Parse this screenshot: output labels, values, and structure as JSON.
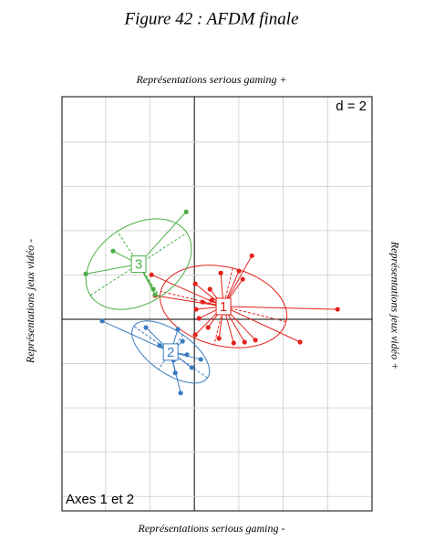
{
  "chart_data": {
    "type": "scatter",
    "title": "Figure 42 : AFDM finale",
    "top_label": "Représentations serious gaming +",
    "bottom_label": "Représentations serious gaming -",
    "left_label": "Représentations jeux vidéo -",
    "right_label": "Représentations jeux vidéo +",
    "annotations": [
      "d = 2",
      "Axes 1 et 2"
    ],
    "xlim": [
      -5.96,
      8
    ],
    "ylim": [
      -8.65,
      10.05
    ],
    "xticks": [
      -4,
      -2,
      0,
      2,
      4,
      6
    ],
    "yticks": [
      -8,
      -6,
      -4,
      -2,
      0,
      2,
      4,
      6,
      8
    ],
    "grid": true,
    "series": [
      {
        "name": "1",
        "color": "#e3211c",
        "x": [
          -1.93,
          -1.77,
          0.04,
          0.7,
          1.19,
          2.01,
          2.59,
          2.18,
          6.45,
          4.76,
          2.75,
          2.26,
          1.77,
          1.11,
          0.04,
          0.62,
          0.08,
          0.37,
          0.78,
          0.21
        ],
        "y": [
          2.01,
          1.07,
          1.6,
          1.36,
          2.09,
          2.18,
          2.87,
          1.81,
          0.45,
          -1.03,
          -0.94,
          -1.03,
          -1.07,
          -0.86,
          -0.7,
          -0.37,
          0.45,
          0.78,
          0.86,
          0.04
        ]
      },
      {
        "name": "2",
        "color": "#3b7cc0",
        "x": [
          -4.15,
          -2.18,
          -1.56,
          -0.74,
          -0.62,
          -0.86,
          -0.94,
          -0.33,
          -0.12,
          0.29,
          -0.53
        ],
        "y": [
          -0.08,
          -0.37,
          -1.19,
          -0.45,
          -3.33,
          -2.42,
          -1.85,
          -1.6,
          -2.18,
          -1.81,
          -0.99
        ]
      },
      {
        "name": "3",
        "color": "#4cae48",
        "x": [
          -0.37,
          -4.89,
          -3.66,
          -1.77,
          -1.85
        ],
        "y": [
          4.85,
          2.05,
          3.08,
          1.11,
          1.36
        ]
      }
    ]
  }
}
